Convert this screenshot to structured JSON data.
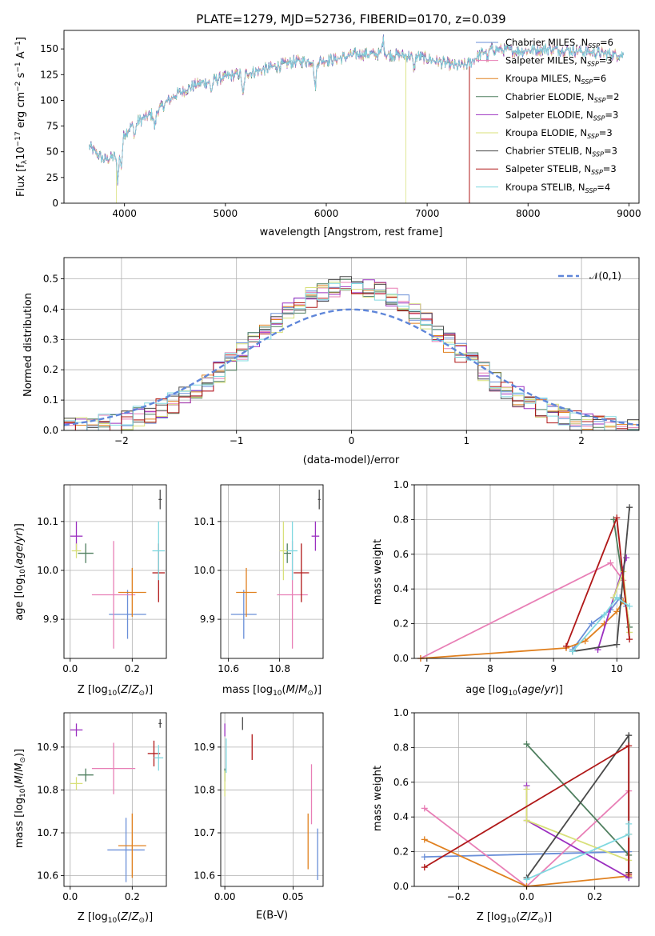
{
  "colors": {
    "Chabrier MILES": "#6a8fd8",
    "Salpeter MILES": "#e87fb6",
    "Kroupa MILES": "#e0801f",
    "Chabrier ELODIE": "#4f7f5f",
    "Salpeter ELODIE": "#9b30c0",
    "Kroupa ELODIE": "#d8e07a",
    "Chabrier STELIB": "#4a4a4a",
    "Salpeter STELIB": "#b01818",
    "Kroupa STELIB": "#80d8e0",
    "normal": "#5f86d9"
  },
  "chart_data": [
    {
      "id": "spectrum",
      "type": "line",
      "title": "PLATE=1279, MJD=52736, FIBERID=0170, z=0.039",
      "xlabel": "wavelength [Angstrom, rest frame]",
      "ylabel": "Flux [f_λ10^{-17} erg cm^{-2} s^{-1} A^{-1}]",
      "xlim": [
        3400,
        9100
      ],
      "ylim": [
        0,
        168
      ],
      "xticks": [
        4000,
        5000,
        6000,
        7000,
        8000,
        9000
      ],
      "yticks": [
        0,
        25,
        50,
        75,
        100,
        125,
        150
      ],
      "legend": [
        "Chabrier MILES, N_SSP=6",
        "Salpeter MILES, N_SSP=3",
        "Kroupa MILES, N_SSP=6",
        "Chabrier ELODIE, N_SSP=2",
        "Salpeter ELODIE, N_SSP=3",
        "Kroupa ELODIE, N_SSP=3",
        "Chabrier STELIB, N_SSP=3",
        "Salpeter STELIB, N_SSP=3",
        "Kroupa STELIB, N_SSP=4"
      ],
      "legend_loc": "top-right",
      "continuum": [
        [
          3650,
          55
        ],
        [
          3800,
          42
        ],
        [
          3900,
          45
        ],
        [
          4000,
          68
        ],
        [
          4100,
          78
        ],
        [
          4300,
          88
        ],
        [
          4500,
          105
        ],
        [
          4700,
          115
        ],
        [
          4900,
          120
        ],
        [
          5100,
          125
        ],
        [
          5300,
          128
        ],
        [
          5500,
          133
        ],
        [
          5700,
          138
        ],
        [
          5900,
          138
        ],
        [
          6100,
          140
        ],
        [
          6300,
          145
        ],
        [
          6500,
          145
        ],
        [
          6700,
          144
        ],
        [
          6900,
          143
        ],
        [
          7100,
          138
        ],
        [
          7300,
          133
        ],
        [
          7400,
          135
        ]
      ],
      "red_extension": [
        [
          7400,
          135
        ],
        [
          7600,
          150
        ],
        [
          7900,
          148
        ],
        [
          8200,
          150
        ],
        [
          8500,
          148
        ],
        [
          8800,
          145
        ],
        [
          8950,
          144
        ]
      ],
      "drops": [
        {
          "series": "Kroupa ELODIE",
          "x": 3920
        },
        {
          "series": "Kroupa ELODIE",
          "x": 6790
        },
        {
          "series": "Salpeter STELIB",
          "x": 7420
        }
      ]
    },
    {
      "id": "residuals",
      "type": "histogram",
      "xlabel": "(data-model)/error",
      "ylabel": "Normed distribution",
      "xlim": [
        -2.5,
        2.5
      ],
      "ylim": [
        0,
        0.57
      ],
      "xticks": [
        -2,
        -1,
        0,
        1,
        2
      ],
      "yticks": [
        0.0,
        0.1,
        0.2,
        0.3,
        0.4,
        0.5
      ],
      "legend": [
        "𝒩(0,1)"
      ],
      "legend_loc": "top-right",
      "grid": true,
      "bin_width": 0.1,
      "reference_curve": "normal pdf, mean 0, sigma 1"
    },
    {
      "id": "age-vs-Z",
      "type": "scatter",
      "xlabel": "Z [log10(Z/Z⊙)]",
      "ylabel": "age [log10(age/yr)]",
      "xlim": [
        -0.02,
        0.31
      ],
      "ylim": [
        9.82,
        10.175
      ],
      "xticks": [
        0.0,
        0.2
      ],
      "yticks": [
        9.9,
        10.0,
        10.1
      ],
      "grid": true,
      "points": [
        {
          "series": "Chabrier MILES",
          "x": 0.185,
          "y": 9.91,
          "xerr": 0.06,
          "yerr": 0.05
        },
        {
          "series": "Salpeter MILES",
          "x": 0.14,
          "y": 9.95,
          "xerr": 0.07,
          "yerr": 0.11
        },
        {
          "series": "Kroupa MILES",
          "x": 0.2,
          "y": 9.955,
          "xerr": 0.045,
          "yerr": 0.05
        },
        {
          "series": "Chabrier ELODIE",
          "x": 0.05,
          "y": 10.035,
          "xerr": 0.025,
          "yerr": 0.02
        },
        {
          "series": "Salpeter ELODIE",
          "x": 0.02,
          "y": 10.07,
          "xerr": 0.02,
          "yerr": 0.03
        },
        {
          "series": "Kroupa ELODIE",
          "x": 0.02,
          "y": 10.04,
          "xerr": 0.015,
          "yerr": 0.015
        },
        {
          "series": "Chabrier STELIB",
          "x": 0.29,
          "y": 10.145,
          "xerr": 0.005,
          "yerr": 0.02
        },
        {
          "series": "Salpeter STELIB",
          "x": 0.285,
          "y": 9.995,
          "xerr": 0.02,
          "yerr": 0.06
        },
        {
          "series": "Kroupa STELIB",
          "x": 0.285,
          "y": 10.04,
          "xerr": 0.02,
          "yerr": 0.06
        }
      ]
    },
    {
      "id": "age-vs-mass",
      "type": "scatter",
      "xlabel": "mass [log10(M/M⊙)]",
      "ylabel": "",
      "xlim": [
        10.57,
        10.97
      ],
      "ylim": [
        9.82,
        10.175
      ],
      "xticks": [
        10.6,
        10.8
      ],
      "yticks": [
        9.9,
        10.0,
        10.1
      ],
      "grid": true,
      "points": [
        {
          "series": "Chabrier MILES",
          "x": 10.66,
          "y": 9.91,
          "xerr": 0.05,
          "yerr": 0.05
        },
        {
          "series": "Salpeter MILES",
          "x": 10.85,
          "y": 9.95,
          "xerr": 0.06,
          "yerr": 0.11
        },
        {
          "series": "Kroupa MILES",
          "x": 10.67,
          "y": 9.955,
          "xerr": 0.04,
          "yerr": 0.05
        },
        {
          "series": "Chabrier ELODIE",
          "x": 10.83,
          "y": 10.035,
          "xerr": 0.015,
          "yerr": 0.02
        },
        {
          "series": "Salpeter ELODIE",
          "x": 10.94,
          "y": 10.07,
          "xerr": 0.015,
          "yerr": 0.03
        },
        {
          "series": "Kroupa ELODIE",
          "x": 10.815,
          "y": 10.04,
          "xerr": 0.015,
          "yerr": 0.06
        },
        {
          "series": "Chabrier STELIB",
          "x": 10.955,
          "y": 10.145,
          "xerr": 0.005,
          "yerr": 0.02
        },
        {
          "series": "Salpeter STELIB",
          "x": 10.885,
          "y": 9.995,
          "xerr": 0.03,
          "yerr": 0.06
        },
        {
          "series": "Kroupa STELIB",
          "x": 10.85,
          "y": 10.04,
          "xerr": 0.02,
          "yerr": 0.06
        }
      ]
    },
    {
      "id": "weight-vs-age",
      "type": "line",
      "xlabel": "age [log10(age/yr)]",
      "ylabel": "mass weight",
      "xlim": [
        6.8,
        10.35
      ],
      "ylim": [
        0,
        1.0
      ],
      "xticks": [
        7,
        8,
        9,
        10
      ],
      "yticks": [
        0.0,
        0.2,
        0.4,
        0.6,
        0.8,
        1.0
      ],
      "grid": true,
      "series": [
        {
          "name": "Chabrier MILES",
          "points": [
            [
              9.3,
              0.05
            ],
            [
              9.6,
              0.2
            ],
            [
              9.9,
              0.28
            ],
            [
              10.05,
              0.35
            ],
            [
              10.15,
              0.3
            ]
          ]
        },
        {
          "name": "Salpeter MILES",
          "points": [
            [
              6.9,
              0.0
            ],
            [
              9.9,
              0.55
            ],
            [
              10.1,
              0.45
            ]
          ]
        },
        {
          "name": "Kroupa MILES",
          "points": [
            [
              6.9,
              0.0
            ],
            [
              9.2,
              0.06
            ],
            [
              9.5,
              0.1
            ],
            [
              9.8,
              0.2
            ],
            [
              10.0,
              0.27
            ],
            [
              10.1,
              0.33
            ]
          ]
        },
        {
          "name": "Chabrier ELODIE",
          "points": [
            [
              9.95,
              0.8
            ],
            [
              10.2,
              0.18
            ]
          ]
        },
        {
          "name": "Salpeter ELODIE",
          "points": [
            [
              9.7,
              0.05
            ],
            [
              9.95,
              0.35
            ],
            [
              10.15,
              0.58
            ]
          ]
        },
        {
          "name": "Kroupa ELODIE",
          "points": [
            [
              9.95,
              0.35
            ],
            [
              10.1,
              0.5
            ],
            [
              10.2,
              0.15
            ]
          ]
        },
        {
          "name": "Chabrier STELIB",
          "points": [
            [
              9.3,
              0.04
            ],
            [
              10.0,
              0.08
            ],
            [
              10.2,
              0.87
            ]
          ]
        },
        {
          "name": "Salpeter STELIB",
          "points": [
            [
              9.2,
              0.07
            ],
            [
              10.0,
              0.81
            ],
            [
              10.2,
              0.11
            ]
          ]
        },
        {
          "name": "Kroupa STELIB",
          "points": [
            [
              9.3,
              0.04
            ],
            [
              9.8,
              0.25
            ],
            [
              10.0,
              0.35
            ],
            [
              10.2,
              0.3
            ]
          ]
        }
      ]
    },
    {
      "id": "mass-vs-Z",
      "type": "scatter",
      "xlabel": "Z [log10(Z/Z⊙)]",
      "ylabel": "mass [log10(M/M⊙)]",
      "xlim": [
        -0.02,
        0.31
      ],
      "ylim": [
        10.575,
        10.98
      ],
      "xticks": [
        0.0,
        0.2
      ],
      "yticks": [
        10.6,
        10.7,
        10.8,
        10.9
      ],
      "grid": true,
      "points": [
        {
          "series": "Chabrier MILES",
          "x": 0.18,
          "y": 10.66,
          "xerr": 0.06,
          "yerr": 0.075
        },
        {
          "series": "Salpeter MILES",
          "x": 0.14,
          "y": 10.85,
          "xerr": 0.07,
          "yerr": 0.06
        },
        {
          "series": "Kroupa MILES",
          "x": 0.2,
          "y": 10.67,
          "xerr": 0.045,
          "yerr": 0.075
        },
        {
          "series": "Chabrier ELODIE",
          "x": 0.05,
          "y": 10.835,
          "xerr": 0.025,
          "yerr": 0.015
        },
        {
          "series": "Salpeter ELODIE",
          "x": 0.02,
          "y": 10.94,
          "xerr": 0.02,
          "yerr": 0.015
        },
        {
          "series": "Kroupa ELODIE",
          "x": 0.02,
          "y": 10.815,
          "xerr": 0.02,
          "yerr": 0.015
        },
        {
          "series": "Chabrier STELIB",
          "x": 0.29,
          "y": 10.955,
          "xerr": 0.005,
          "yerr": 0.01
        },
        {
          "series": "Salpeter STELIB",
          "x": 0.27,
          "y": 10.885,
          "xerr": 0.02,
          "yerr": 0.03
        },
        {
          "series": "Kroupa STELIB",
          "x": 0.285,
          "y": 10.875,
          "xerr": 0.015,
          "yerr": 0.03
        }
      ]
    },
    {
      "id": "mass-vs-ebv",
      "type": "scatter",
      "xlabel": "E(B-V)",
      "ylabel": "",
      "xlim": [
        -0.003,
        0.072
      ],
      "ylim": [
        10.575,
        10.98
      ],
      "xticks": [
        0.0,
        0.05
      ],
      "yticks": [
        10.6,
        10.7,
        10.8,
        10.9
      ],
      "grid": true,
      "points": [
        {
          "series": "Chabrier MILES",
          "x": 0.068,
          "y": 10.65,
          "yerr": 0.06
        },
        {
          "series": "Salpeter MILES",
          "x": 0.0635,
          "y": 10.79,
          "yerr": 0.07
        },
        {
          "series": "Kroupa MILES",
          "x": 0.061,
          "y": 10.68,
          "yerr": 0.065
        },
        {
          "series": "Chabrier ELODIE",
          "x": 0.0,
          "y": 10.835,
          "yerr": 0.015
        },
        {
          "series": "Salpeter ELODIE",
          "x": 0.0,
          "y": 10.94,
          "yerr": 0.015
        },
        {
          "series": "Kroupa ELODIE",
          "x": 0.0,
          "y": 10.815,
          "yerr": 0.03
        },
        {
          "series": "Chabrier STELIB",
          "x": 0.013,
          "y": 10.955,
          "yerr": 0.015
        },
        {
          "series": "Salpeter STELIB",
          "x": 0.02,
          "y": 10.9,
          "yerr": 0.03
        },
        {
          "series": "Kroupa STELIB",
          "x": 0.001,
          "y": 10.88,
          "yerr": 0.04
        }
      ]
    },
    {
      "id": "weight-vs-Z",
      "type": "line",
      "xlabel": "Z [log10(Z/Z⊙)]",
      "ylabel": "mass weight",
      "xlim": [
        -0.33,
        0.33
      ],
      "ylim": [
        0,
        1.0
      ],
      "xticks": [
        -0.2,
        0.0,
        0.2
      ],
      "yticks": [
        0.0,
        0.2,
        0.4,
        0.6,
        0.8,
        1.0
      ],
      "grid": true,
      "series": [
        {
          "name": "Chabrier MILES",
          "points": [
            [
              -0.3,
              0.17
            ],
            [
              0.3,
              0.2
            ],
            [
              0.3,
              0.05
            ]
          ]
        },
        {
          "name": "Salpeter MILES",
          "points": [
            [
              -0.3,
              0.45
            ],
            [
              0.0,
              0.0
            ],
            [
              0.3,
              0.55
            ]
          ]
        },
        {
          "name": "Kroupa MILES",
          "points": [
            [
              -0.3,
              0.27
            ],
            [
              0.0,
              0.0
            ],
            [
              0.3,
              0.06
            ],
            [
              0.3,
              0.3
            ]
          ]
        },
        {
          "name": "Chabrier ELODIE",
          "points": [
            [
              0.0,
              0.82
            ],
            [
              0.3,
              0.18
            ],
            [
              0.3,
              0.05
            ]
          ]
        },
        {
          "name": "Salpeter ELODIE",
          "points": [
            [
              0.0,
              0.58
            ],
            [
              0.0,
              0.38
            ],
            [
              0.3,
              0.05
            ]
          ]
        },
        {
          "name": "Kroupa ELODIE",
          "points": [
            [
              0.0,
              0.56
            ],
            [
              0.0,
              0.38
            ],
            [
              0.3,
              0.15
            ]
          ]
        },
        {
          "name": "Chabrier STELIB",
          "points": [
            [
              0.0,
              0.05
            ],
            [
              0.3,
              0.87
            ],
            [
              0.3,
              0.08
            ]
          ]
        },
        {
          "name": "Salpeter STELIB",
          "points": [
            [
              -0.3,
              0.11
            ],
            [
              0.3,
              0.81
            ],
            [
              0.3,
              0.07
            ]
          ]
        },
        {
          "name": "Kroupa STELIB",
          "points": [
            [
              0.0,
              0.04
            ],
            [
              0.3,
              0.3
            ],
            [
              0.3,
              0.36
            ]
          ]
        }
      ]
    }
  ]
}
